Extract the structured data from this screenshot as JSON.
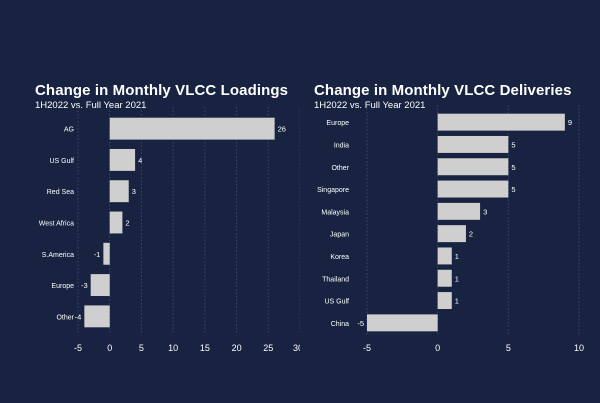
{
  "colors": {
    "background": "#172340",
    "bar": "#cfcfcf",
    "grid": "#3a4766",
    "text": "#ffffff"
  },
  "chart_data": [
    {
      "type": "bar",
      "orientation": "horizontal",
      "title": "Change in Monthly VLCC Loadings",
      "subtitle": "1H2022 vs. Full Year 2021",
      "categories": [
        "AG",
        "US Gulf",
        "Red Sea",
        "West Africa",
        "S.America",
        "Europe",
        "Other"
      ],
      "values": [
        26,
        4,
        3,
        2,
        -1,
        -3,
        -4
      ],
      "xlim": [
        -5,
        30
      ],
      "xticks": [
        -5,
        0,
        5,
        10,
        15,
        20,
        25,
        30
      ],
      "grid": true
    },
    {
      "type": "bar",
      "orientation": "horizontal",
      "title": "Change in Monthly VLCC Deliveries",
      "subtitle": "1H2022 vs. Full Year 2021",
      "categories": [
        "Europe",
        "India",
        "Other",
        "Singapore",
        "Malaysia",
        "Japan",
        "Korea",
        "Thailand",
        "US Gulf",
        "China"
      ],
      "values": [
        9,
        5,
        5,
        5,
        3,
        2,
        1,
        1,
        1,
        -5
      ],
      "xlim": [
        -5,
        10
      ],
      "xticks": [
        -5,
        0,
        5,
        10
      ],
      "xtick_labels": [
        "-5",
        "0",
        "5",
        "10"
      ],
      "grid": true
    }
  ]
}
